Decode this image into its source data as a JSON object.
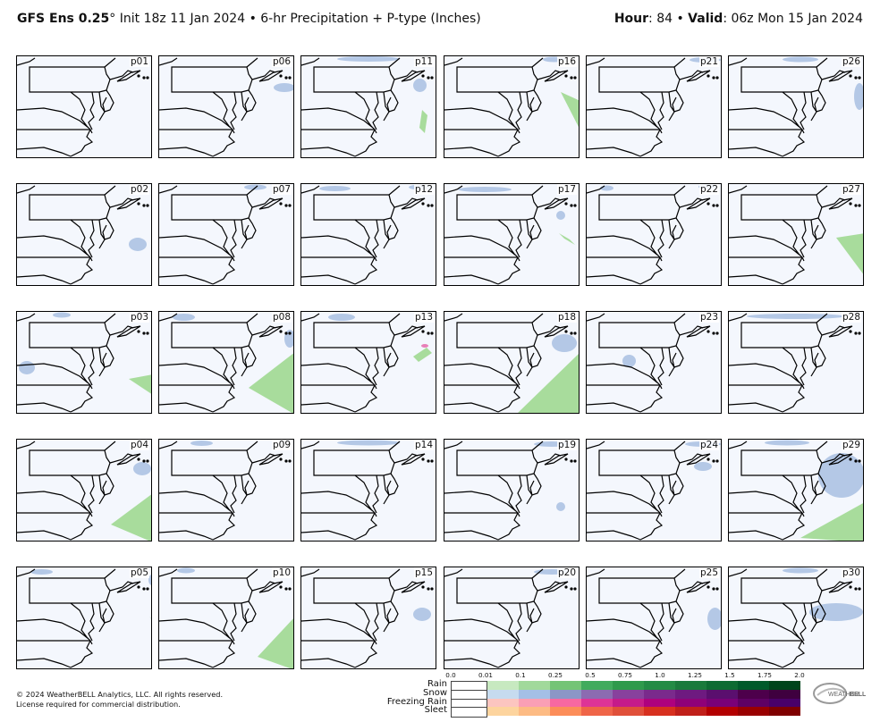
{
  "header": {
    "model": "GFS Ens 0.25",
    "degree": "°",
    "init": " Init 18z 11 Jan 2024 • 6-hr Precipitation + P-type (Inches)",
    "hour_label": "Hour",
    "hour_value": ": 84 • ",
    "valid_label": "Valid",
    "valid_value": ": 06z Mon 15 Jan 2024"
  },
  "panels": [
    {
      "id": "p01",
      "rain": [
        [
          130,
          160,
          148,
          120,
          165,
          120
        ]
      ],
      "snow": []
    },
    {
      "id": "p06",
      "rain": [
        [
          108,
          122,
          152,
          138,
          152,
          120
        ]
      ],
      "snow": [
        [
          128,
          30,
          152,
          40
        ]
      ]
    },
    {
      "id": "p11",
      "rain": [
        [
          132,
          80,
          135,
          60
        ]
      ],
      "snow": [
        [
          40,
          2,
          110,
          4
        ],
        [
          125,
          25,
          140,
          40
        ]
      ]
    },
    {
      "id": "p16",
      "rain": [
        [
          130,
          40,
          152,
          50,
          152,
          75
        ]
      ],
      "snow": [
        [
          110,
          2,
          135,
          5
        ]
      ]
    },
    {
      "id": "p21",
      "rain": [],
      "snow": [
        [
          115,
          2,
          150,
          6
        ]
      ]
    },
    {
      "id": "p26",
      "rain": [],
      "snow": [
        [
          140,
          30,
          152,
          60
        ],
        [
          60,
          2,
          100,
          5
        ]
      ]
    },
    {
      "id": "p02",
      "rain": [],
      "snow": [
        [
          125,
          75,
          145,
          60
        ]
      ]
    },
    {
      "id": "p07",
      "rain": [],
      "snow": [
        [
          95,
          2,
          120,
          5
        ]
      ]
    },
    {
      "id": "p12",
      "rain": [],
      "snow": [
        [
          20,
          2,
          55,
          8
        ],
        [
          120,
          2,
          148,
          5
        ]
      ]
    },
    {
      "id": "p17",
      "rain": [
        [
          128,
          55,
          140,
          62
        ]
      ],
      "snow": [
        [
          15,
          4,
          75,
          8
        ],
        [
          125,
          30,
          135,
          40
        ]
      ]
    },
    {
      "id": "p22",
      "rain": [],
      "snow": [
        [
          15,
          2,
          30,
          7
        ],
        [
          125,
          2,
          145,
          4
        ]
      ]
    },
    {
      "id": "p27",
      "rain": [
        [
          120,
          60,
          152,
          55,
          152,
          95
        ]
      ],
      "snow": []
    },
    {
      "id": "p03",
      "rain": [
        [
          125,
          75,
          152,
          70,
          152,
          85
        ]
      ],
      "snow": [
        [
          2,
          55,
          20,
          70
        ],
        [
          40,
          2,
          60,
          5
        ]
      ]
    },
    {
      "id": "p08",
      "rain": [
        [
          100,
          85,
          152,
          45,
          152,
          110
        ]
      ],
      "snow": [
        [
          15,
          2,
          40,
          10
        ],
        [
          140,
          20,
          152,
          40
        ]
      ]
    },
    {
      "id": "p13",
      "rain": [
        [
          125,
          50,
          140,
          40
        ]
      ],
      "snow": [
        [
          30,
          2,
          60,
          10
        ]
      ]
    },
    {
      "id": "p18",
      "rain": [
        [
          80,
          115,
          152,
          45,
          152,
          115
        ]
      ],
      "snow": [
        [
          120,
          45,
          148,
          25
        ]
      ]
    },
    {
      "id": "p23",
      "rain": [],
      "snow": [
        [
          40,
          48,
          55,
          62
        ]
      ]
    },
    {
      "id": "p28",
      "rain": [],
      "snow": [
        [
          20,
          2,
          130,
          8
        ]
      ]
    },
    {
      "id": "p04",
      "rain": [
        [
          105,
          95,
          152,
          60,
          152,
          110
        ]
      ],
      "snow": [
        [
          130,
          25,
          150,
          40
        ]
      ]
    },
    {
      "id": "p09",
      "rain": [],
      "snow": [
        [
          35,
          2,
          60,
          6
        ]
      ]
    },
    {
      "id": "p14",
      "rain": [],
      "snow": [
        [
          40,
          2,
          110,
          5
        ]
      ]
    },
    {
      "id": "p19",
      "rain": [],
      "snow": [
        [
          100,
          2,
          140,
          8
        ],
        [
          125,
          70,
          135,
          80
        ]
      ]
    },
    {
      "id": "p24",
      "rain": [],
      "snow": [
        [
          110,
          2,
          150,
          8
        ],
        [
          120,
          25,
          140,
          35
        ]
      ]
    },
    {
      "id": "p29",
      "rain": [
        [
          80,
          110,
          152,
          70,
          152,
          115
        ]
      ],
      "snow": [
        [
          100,
          65,
          152,
          15
        ],
        [
          40,
          2,
          90,
          5
        ]
      ]
    },
    {
      "id": "p05",
      "rain": [
        [
          148,
          55,
          152,
          60
        ]
      ],
      "snow": [
        [
          15,
          2,
          40,
          8
        ],
        [
          150,
          8,
          152,
          20
        ]
      ]
    },
    {
      "id": "p10",
      "rain": [
        [
          110,
          100,
          152,
          55,
          152,
          115
        ]
      ],
      "snow": [
        [
          20,
          2,
          40,
          5
        ]
      ]
    },
    {
      "id": "p15",
      "rain": [],
      "snow": [
        [
          125,
          60,
          145,
          45
        ]
      ]
    },
    {
      "id": "p20",
      "rain": [],
      "snow": [
        [
          100,
          2,
          140,
          8
        ]
      ]
    },
    {
      "id": "p25",
      "rain": [],
      "snow": [
        [
          135,
          70,
          152,
          45
        ]
      ]
    },
    {
      "id": "p30",
      "rain": [],
      "snow": [
        [
          90,
          40,
          150,
          60
        ],
        [
          60,
          2,
          100,
          5
        ]
      ]
    }
  ],
  "legend": {
    "ticks": [
      "0.0",
      "0.01",
      "0.1",
      "0.25",
      "0.5",
      "0.75",
      "1.0",
      "1.25",
      "1.5",
      "1.75",
      "2.0"
    ],
    "rows": [
      {
        "label": "Rain",
        "colors": [
          "#ffffff",
          "#c7e9c0",
          "#a1d99b",
          "#74c476",
          "#41ab5d",
          "#2f9a4c",
          "#238b45",
          "#1a7a3c",
          "#0e6b33",
          "#005a2b",
          "#00441b"
        ]
      },
      {
        "label": "Snow",
        "colors": [
          "#ffffff",
          "#c6dbef",
          "#a4bfe6",
          "#8c96c6",
          "#8c6bb1",
          "#88419d",
          "#7a2a8c",
          "#6e1a80",
          "#5a0f6e",
          "#4d004b",
          "#3f003f"
        ]
      },
      {
        "label": "Freezing Rain",
        "colors": [
          "#ffffff",
          "#fcc5c0",
          "#fa9fb5",
          "#f768a1",
          "#dd3497",
          "#c51b8a",
          "#ae017e",
          "#8f0178",
          "#7a0177",
          "#5e0164",
          "#49006a"
        ]
      },
      {
        "label": "Sleet",
        "colors": [
          "#ffffff",
          "#fdd49e",
          "#fdbb84",
          "#fc8d59",
          "#ef6548",
          "#e0503a",
          "#d7301f",
          "#c0201a",
          "#b30000",
          "#990000",
          "#7f0000"
        ]
      }
    ]
  },
  "footer": {
    "line1": "© 2024 WeatherBELL Analytics, LLC. All rights reserved.",
    "line2": "License required for commercial distribution."
  },
  "colors": {
    "rain": "#a8dc9c",
    "snow": "#b4c8e6",
    "freezing_rain": "#e87fb8"
  }
}
